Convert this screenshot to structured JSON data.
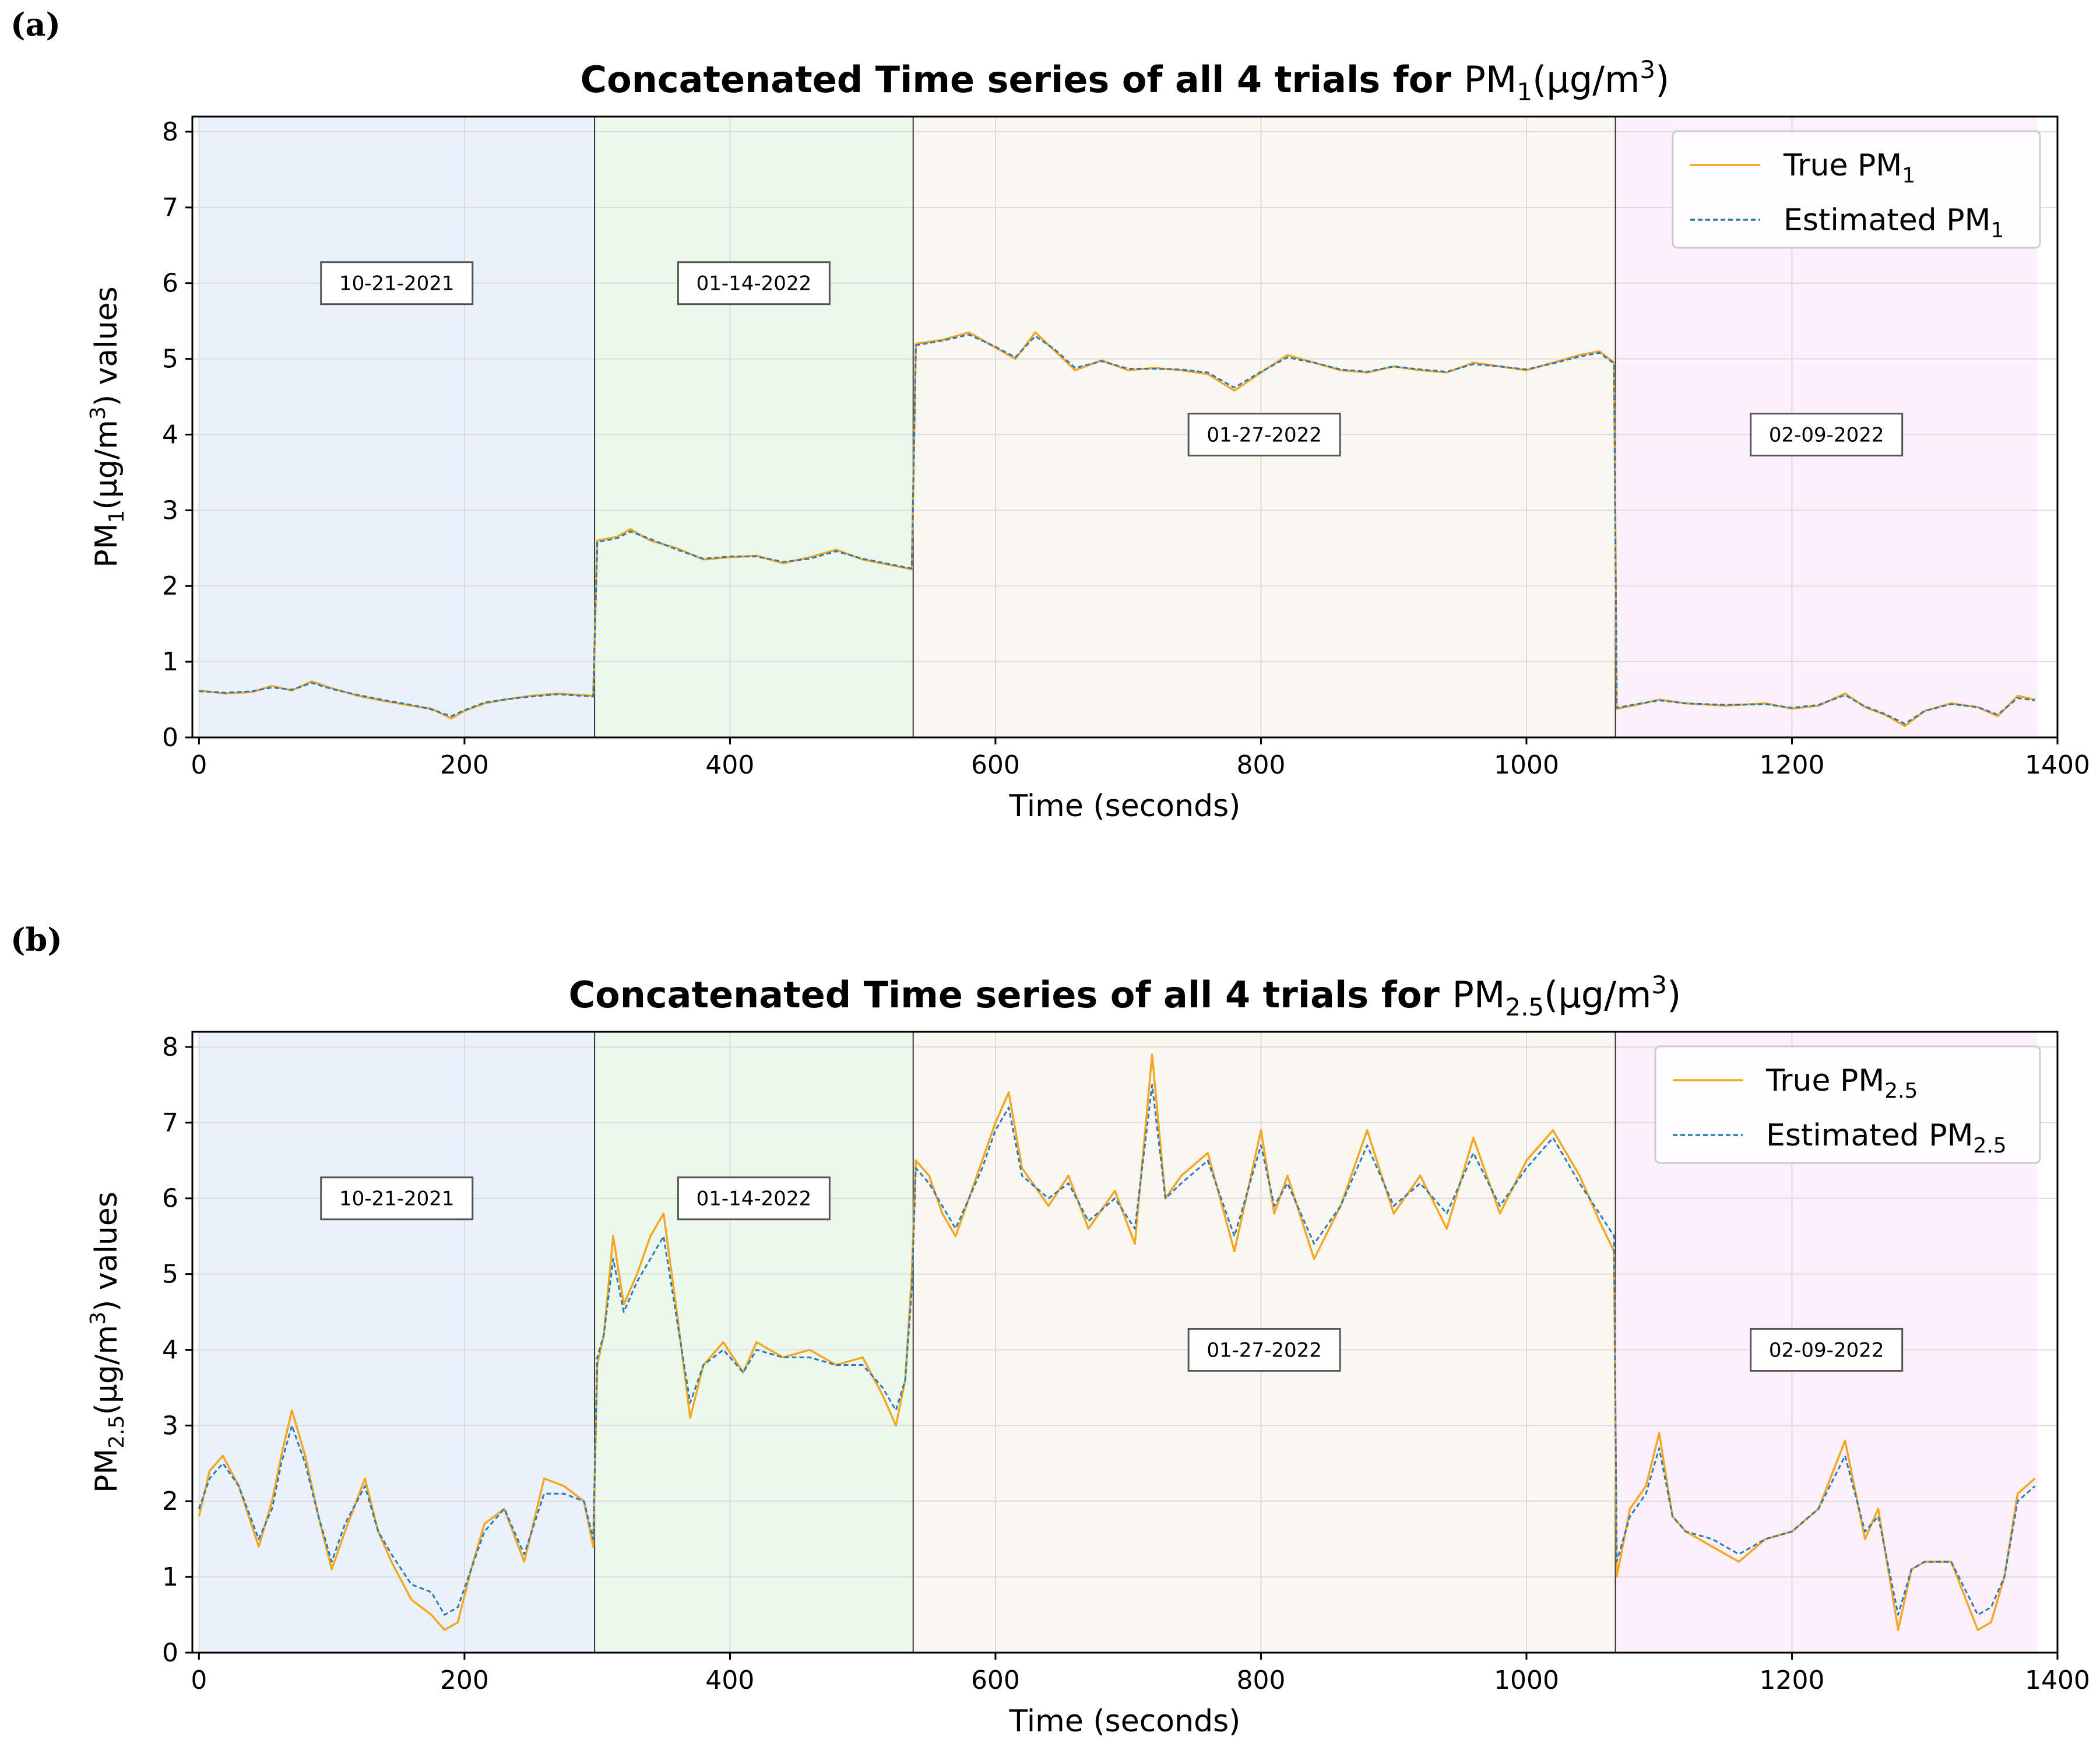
{
  "panels": [
    {
      "label": "(a)"
    },
    {
      "label": "(b)"
    }
  ],
  "chart_data": [
    {
      "type": "line",
      "title": "Concatenated Time series of all 4 trials for",
      "title_suffix": {
        "pm": "PM",
        "sub": "1",
        "paren": "(μg/m",
        "sup": "3",
        "close": ")"
      },
      "ylabel": {
        "pm": "PM",
        "sub": "1",
        "paren": "(μg/m",
        "sup": "3",
        "close": ") values"
      },
      "xlabel": "Time (seconds)",
      "xlim": [
        -5,
        1400
      ],
      "ylim": [
        0,
        8.2
      ],
      "xticks": [
        0,
        200,
        400,
        600,
        800,
        1000,
        1200,
        1400
      ],
      "yticks": [
        0,
        1,
        2,
        3,
        4,
        5,
        6,
        7,
        8
      ],
      "grid": true,
      "legend_position": "top-right",
      "legend": [
        {
          "prefix": "True PM",
          "sub": "1",
          "color": "#f5a623",
          "style": "solid"
        },
        {
          "prefix": "Estimated PM",
          "sub": "1",
          "color": "#2b7bba",
          "style": "dashed"
        }
      ],
      "trials": [
        {
          "date": "10-21-2021",
          "start": 0,
          "end": 298,
          "color": "#eaf1fb",
          "label_y": 6.0
        },
        {
          "date": "01-14-2022",
          "start": 298,
          "end": 538,
          "color": "#edf8ec",
          "label_y": 6.0
        },
        {
          "date": "01-27-2022",
          "start": 538,
          "end": 1067,
          "color": "#faf7f2",
          "label_y": 4.0
        },
        {
          "date": "02-09-2022",
          "start": 1067,
          "end": 1385,
          "color": "#fcf0fc",
          "label_y": 4.0
        }
      ],
      "series": [
        {
          "name": "True PM1",
          "color": "#f5a623",
          "x": [
            0,
            20,
            40,
            55,
            70,
            85,
            100,
            120,
            140,
            160,
            175,
            190,
            200,
            215,
            230,
            250,
            270,
            297,
            300,
            315,
            325,
            340,
            360,
            380,
            400,
            420,
            440,
            460,
            480,
            500,
            520,
            537,
            540,
            560,
            580,
            600,
            615,
            630,
            645,
            660,
            680,
            700,
            720,
            740,
            760,
            780,
            800,
            820,
            840,
            860,
            880,
            900,
            920,
            940,
            960,
            980,
            1000,
            1020,
            1040,
            1055,
            1066,
            1068,
            1080,
            1100,
            1120,
            1150,
            1180,
            1200,
            1220,
            1240,
            1255,
            1270,
            1285,
            1300,
            1320,
            1340,
            1355,
            1370,
            1383
          ],
          "y": [
            0.62,
            0.58,
            0.6,
            0.68,
            0.62,
            0.74,
            0.65,
            0.55,
            0.48,
            0.42,
            0.38,
            0.25,
            0.35,
            0.45,
            0.5,
            0.55,
            0.58,
            0.55,
            2.6,
            2.65,
            2.75,
            2.6,
            2.5,
            2.35,
            2.38,
            2.4,
            2.3,
            2.38,
            2.48,
            2.35,
            2.28,
            2.22,
            5.2,
            5.25,
            5.35,
            5.15,
            5.0,
            5.35,
            5.1,
            4.85,
            4.98,
            4.85,
            4.88,
            4.85,
            4.8,
            4.58,
            4.82,
            5.05,
            4.95,
            4.85,
            4.82,
            4.9,
            4.85,
            4.82,
            4.95,
            4.9,
            4.85,
            4.95,
            5.05,
            5.1,
            4.95,
            0.38,
            0.42,
            0.5,
            0.45,
            0.42,
            0.45,
            0.38,
            0.42,
            0.58,
            0.4,
            0.3,
            0.15,
            0.35,
            0.45,
            0.4,
            0.28,
            0.55,
            0.5
          ]
        },
        {
          "name": "Estimated PM1",
          "color": "#2b7bba",
          "x": [
            0,
            20,
            40,
            55,
            70,
            85,
            100,
            120,
            140,
            160,
            175,
            190,
            200,
            215,
            230,
            250,
            270,
            297,
            300,
            315,
            325,
            340,
            360,
            380,
            400,
            420,
            440,
            460,
            480,
            500,
            520,
            537,
            540,
            560,
            580,
            600,
            615,
            630,
            645,
            660,
            680,
            700,
            720,
            740,
            760,
            780,
            800,
            820,
            840,
            860,
            880,
            900,
            920,
            940,
            960,
            980,
            1000,
            1020,
            1040,
            1055,
            1066,
            1068,
            1080,
            1100,
            1120,
            1150,
            1180,
            1200,
            1220,
            1240,
            1255,
            1270,
            1285,
            1300,
            1320,
            1340,
            1355,
            1370,
            1383
          ],
          "y": [
            0.61,
            0.59,
            0.61,
            0.66,
            0.63,
            0.72,
            0.64,
            0.56,
            0.49,
            0.43,
            0.37,
            0.28,
            0.36,
            0.46,
            0.5,
            0.54,
            0.57,
            0.54,
            2.58,
            2.63,
            2.72,
            2.62,
            2.48,
            2.36,
            2.39,
            2.39,
            2.32,
            2.36,
            2.46,
            2.36,
            2.29,
            2.23,
            5.18,
            5.24,
            5.32,
            5.16,
            5.02,
            5.3,
            5.12,
            4.88,
            4.97,
            4.87,
            4.87,
            4.86,
            4.82,
            4.62,
            4.83,
            5.02,
            4.95,
            4.86,
            4.83,
            4.9,
            4.86,
            4.83,
            4.93,
            4.9,
            4.86,
            4.94,
            5.03,
            5.08,
            4.94,
            0.39,
            0.43,
            0.49,
            0.45,
            0.43,
            0.44,
            0.39,
            0.43,
            0.56,
            0.41,
            0.31,
            0.18,
            0.35,
            0.44,
            0.4,
            0.3,
            0.52,
            0.49
          ]
        }
      ]
    },
    {
      "type": "line",
      "title": "Concatenated Time series of all 4 trials for",
      "title_suffix": {
        "pm": "PM",
        "sub": "2.5",
        "paren": "(μg/m",
        "sup": "3",
        "close": ")"
      },
      "ylabel": {
        "pm": "PM",
        "sub": "2.5",
        "paren": "(μg/m",
        "sup": "3",
        "close": ") values"
      },
      "xlabel": "Time (seconds)",
      "xlim": [
        -5,
        1400
      ],
      "ylim": [
        0,
        8.2
      ],
      "xticks": [
        0,
        200,
        400,
        600,
        800,
        1000,
        1200,
        1400
      ],
      "yticks": [
        0,
        1,
        2,
        3,
        4,
        5,
        6,
        7,
        8
      ],
      "grid": true,
      "legend_position": "top-right",
      "legend": [
        {
          "prefix": "True PM",
          "sub": "2.5",
          "color": "#f5a623",
          "style": "solid"
        },
        {
          "prefix": "Estimated PM",
          "sub": "2.5",
          "color": "#2b7bba",
          "style": "dashed"
        }
      ],
      "trials": [
        {
          "date": "10-21-2021",
          "start": 0,
          "end": 298,
          "color": "#eaf1fb",
          "label_y": 6.0
        },
        {
          "date": "01-14-2022",
          "start": 298,
          "end": 538,
          "color": "#edf8ec",
          "label_y": 6.0
        },
        {
          "date": "01-27-2022",
          "start": 538,
          "end": 1067,
          "color": "#faf7f2",
          "label_y": 4.0
        },
        {
          "date": "02-09-2022",
          "start": 1067,
          "end": 1385,
          "color": "#fcf0fc",
          "label_y": 4.0
        }
      ],
      "series": [
        {
          "name": "True PM2.5",
          "color": "#f5a623",
          "x": [
            0,
            8,
            18,
            30,
            45,
            55,
            62,
            70,
            80,
            90,
            100,
            110,
            125,
            135,
            145,
            160,
            175,
            185,
            195,
            205,
            215,
            230,
            245,
            260,
            275,
            290,
            297,
            300,
            305,
            312,
            320,
            330,
            340,
            350,
            360,
            370,
            380,
            395,
            410,
            420,
            440,
            460,
            480,
            500,
            515,
            525,
            532,
            537,
            540,
            550,
            560,
            570,
            590,
            600,
            610,
            620,
            640,
            655,
            670,
            690,
            705,
            718,
            728,
            740,
            760,
            780,
            800,
            810,
            820,
            840,
            860,
            880,
            900,
            920,
            940,
            960,
            980,
            1000,
            1020,
            1040,
            1055,
            1066,
            1068,
            1078,
            1090,
            1100,
            1110,
            1120,
            1140,
            1160,
            1180,
            1200,
            1220,
            1240,
            1255,
            1265,
            1280,
            1290,
            1300,
            1320,
            1340,
            1350,
            1360,
            1370,
            1383
          ],
          "y": [
            1.8,
            2.4,
            2.6,
            2.2,
            1.4,
            2.0,
            2.6,
            3.2,
            2.6,
            1.8,
            1.1,
            1.6,
            2.3,
            1.6,
            1.2,
            0.7,
            0.5,
            0.3,
            0.4,
            1.1,
            1.7,
            1.9,
            1.2,
            2.3,
            2.2,
            2.0,
            1.4,
            3.8,
            4.2,
            5.5,
            4.6,
            5.0,
            5.5,
            5.8,
            4.5,
            3.1,
            3.8,
            4.1,
            3.7,
            4.1,
            3.9,
            4.0,
            3.8,
            3.9,
            3.4,
            3.0,
            3.6,
            5.0,
            6.5,
            6.3,
            5.8,
            5.5,
            6.5,
            7.0,
            7.4,
            6.4,
            5.9,
            6.3,
            5.6,
            6.1,
            5.4,
            7.9,
            6.0,
            6.3,
            6.6,
            5.3,
            6.9,
            5.8,
            6.3,
            5.2,
            5.9,
            6.9,
            5.8,
            6.3,
            5.6,
            6.8,
            5.8,
            6.5,
            6.9,
            6.3,
            5.7,
            5.3,
            1.0,
            1.9,
            2.2,
            2.9,
            1.8,
            1.6,
            1.4,
            1.2,
            1.5,
            1.6,
            1.9,
            2.8,
            1.5,
            1.9,
            0.3,
            1.1,
            1.2,
            1.2,
            0.3,
            0.4,
            1.0,
            2.1,
            2.3
          ]
        },
        {
          "name": "Estimated PM2.5",
          "color": "#2b7bba",
          "x": [
            0,
            8,
            18,
            30,
            45,
            55,
            62,
            70,
            80,
            90,
            100,
            110,
            125,
            135,
            145,
            160,
            175,
            185,
            195,
            205,
            215,
            230,
            245,
            260,
            275,
            290,
            297,
            300,
            305,
            312,
            320,
            330,
            340,
            350,
            360,
            370,
            380,
            395,
            410,
            420,
            440,
            460,
            480,
            500,
            515,
            525,
            532,
            537,
            540,
            550,
            560,
            570,
            590,
            600,
            610,
            620,
            640,
            655,
            670,
            690,
            705,
            718,
            728,
            740,
            760,
            780,
            800,
            810,
            820,
            840,
            860,
            880,
            900,
            920,
            940,
            960,
            980,
            1000,
            1020,
            1040,
            1055,
            1066,
            1068,
            1078,
            1090,
            1100,
            1110,
            1120,
            1140,
            1160,
            1180,
            1200,
            1220,
            1240,
            1255,
            1265,
            1280,
            1290,
            1300,
            1320,
            1340,
            1350,
            1360,
            1370,
            1383
          ],
          "y": [
            1.9,
            2.3,
            2.5,
            2.2,
            1.5,
            1.9,
            2.5,
            3.0,
            2.5,
            1.8,
            1.2,
            1.7,
            2.2,
            1.6,
            1.3,
            0.9,
            0.8,
            0.5,
            0.6,
            1.1,
            1.6,
            1.9,
            1.3,
            2.1,
            2.1,
            2.0,
            1.5,
            3.9,
            4.2,
            5.2,
            4.5,
            4.9,
            5.2,
            5.5,
            4.4,
            3.3,
            3.8,
            4.0,
            3.7,
            4.0,
            3.9,
            3.9,
            3.8,
            3.8,
            3.5,
            3.2,
            3.6,
            4.8,
            6.4,
            6.2,
            5.9,
            5.6,
            6.4,
            6.9,
            7.2,
            6.3,
            6.0,
            6.2,
            5.7,
            6.0,
            5.6,
            7.5,
            6.0,
            6.2,
            6.5,
            5.5,
            6.7,
            5.9,
            6.2,
            5.4,
            5.9,
            6.7,
            5.9,
            6.2,
            5.8,
            6.6,
            5.9,
            6.4,
            6.8,
            6.2,
            5.8,
            5.5,
            1.2,
            1.8,
            2.1,
            2.7,
            1.8,
            1.6,
            1.5,
            1.3,
            1.5,
            1.6,
            1.9,
            2.6,
            1.6,
            1.8,
            0.5,
            1.1,
            1.2,
            1.2,
            0.5,
            0.6,
            1.0,
            2.0,
            2.2
          ]
        }
      ]
    }
  ]
}
